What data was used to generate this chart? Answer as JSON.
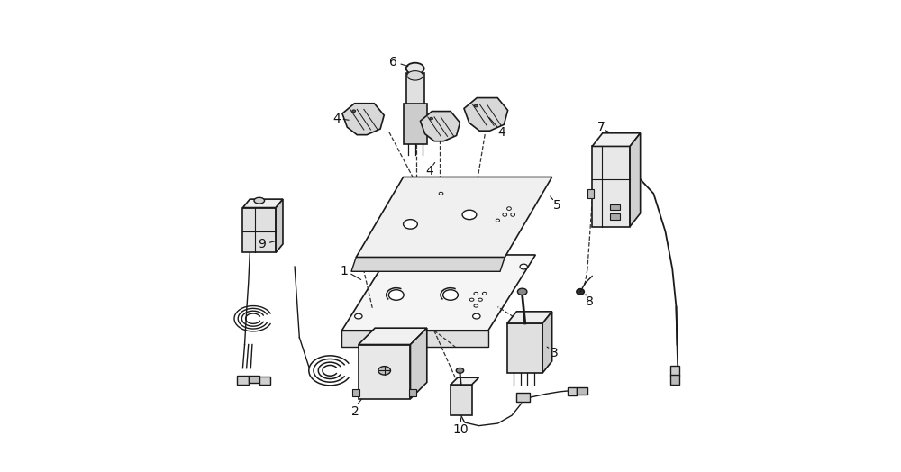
{
  "background_color": "#ffffff",
  "line_color": "#1a1a1a",
  "dashed_color": "#333333",
  "fig_width": 10.0,
  "fig_height": 5.24
}
